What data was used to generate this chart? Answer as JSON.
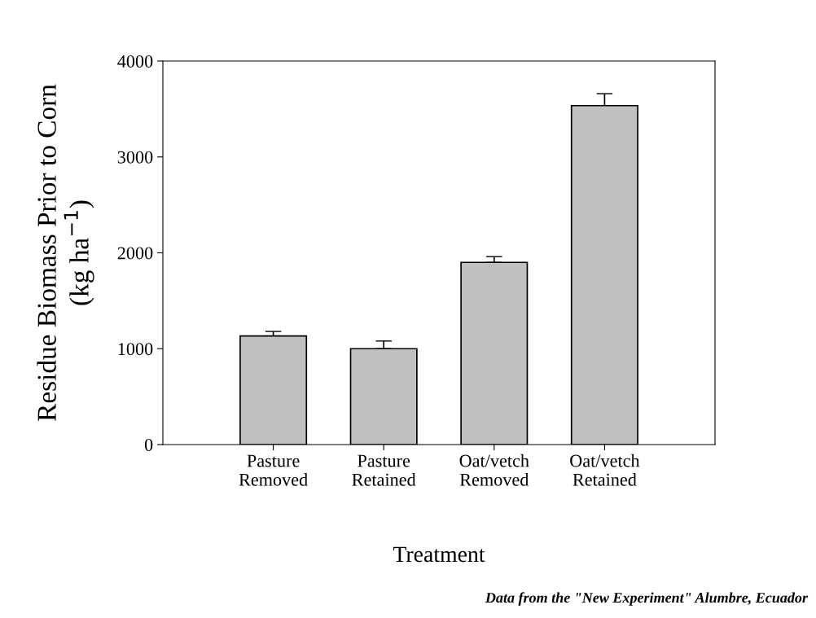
{
  "chart_data": {
    "type": "bar",
    "xlabel": "Treatment",
    "ylabel": "Residue Biomass Prior to Corn\n(kg ha$^{−1}$)",
    "categories": [
      "Pasture\nRemoved",
      "Pasture\nRetained",
      "Oat/vetch\nRemoved",
      "Oat/vetch\nRetained"
    ],
    "values": [
      1133,
      1000,
      1900,
      3535
    ],
    "errors": [
      47,
      80,
      60,
      125
    ],
    "color": "#c0c0c0",
    "ylim": [
      0,
      4000
    ],
    "yticks": [
      0,
      1000,
      2000,
      3000,
      4000
    ],
    "grid": false,
    "legend": false,
    "annotations": [
      "Data from the \"New Experiment\" Alumbre, Ecuador"
    ]
  }
}
